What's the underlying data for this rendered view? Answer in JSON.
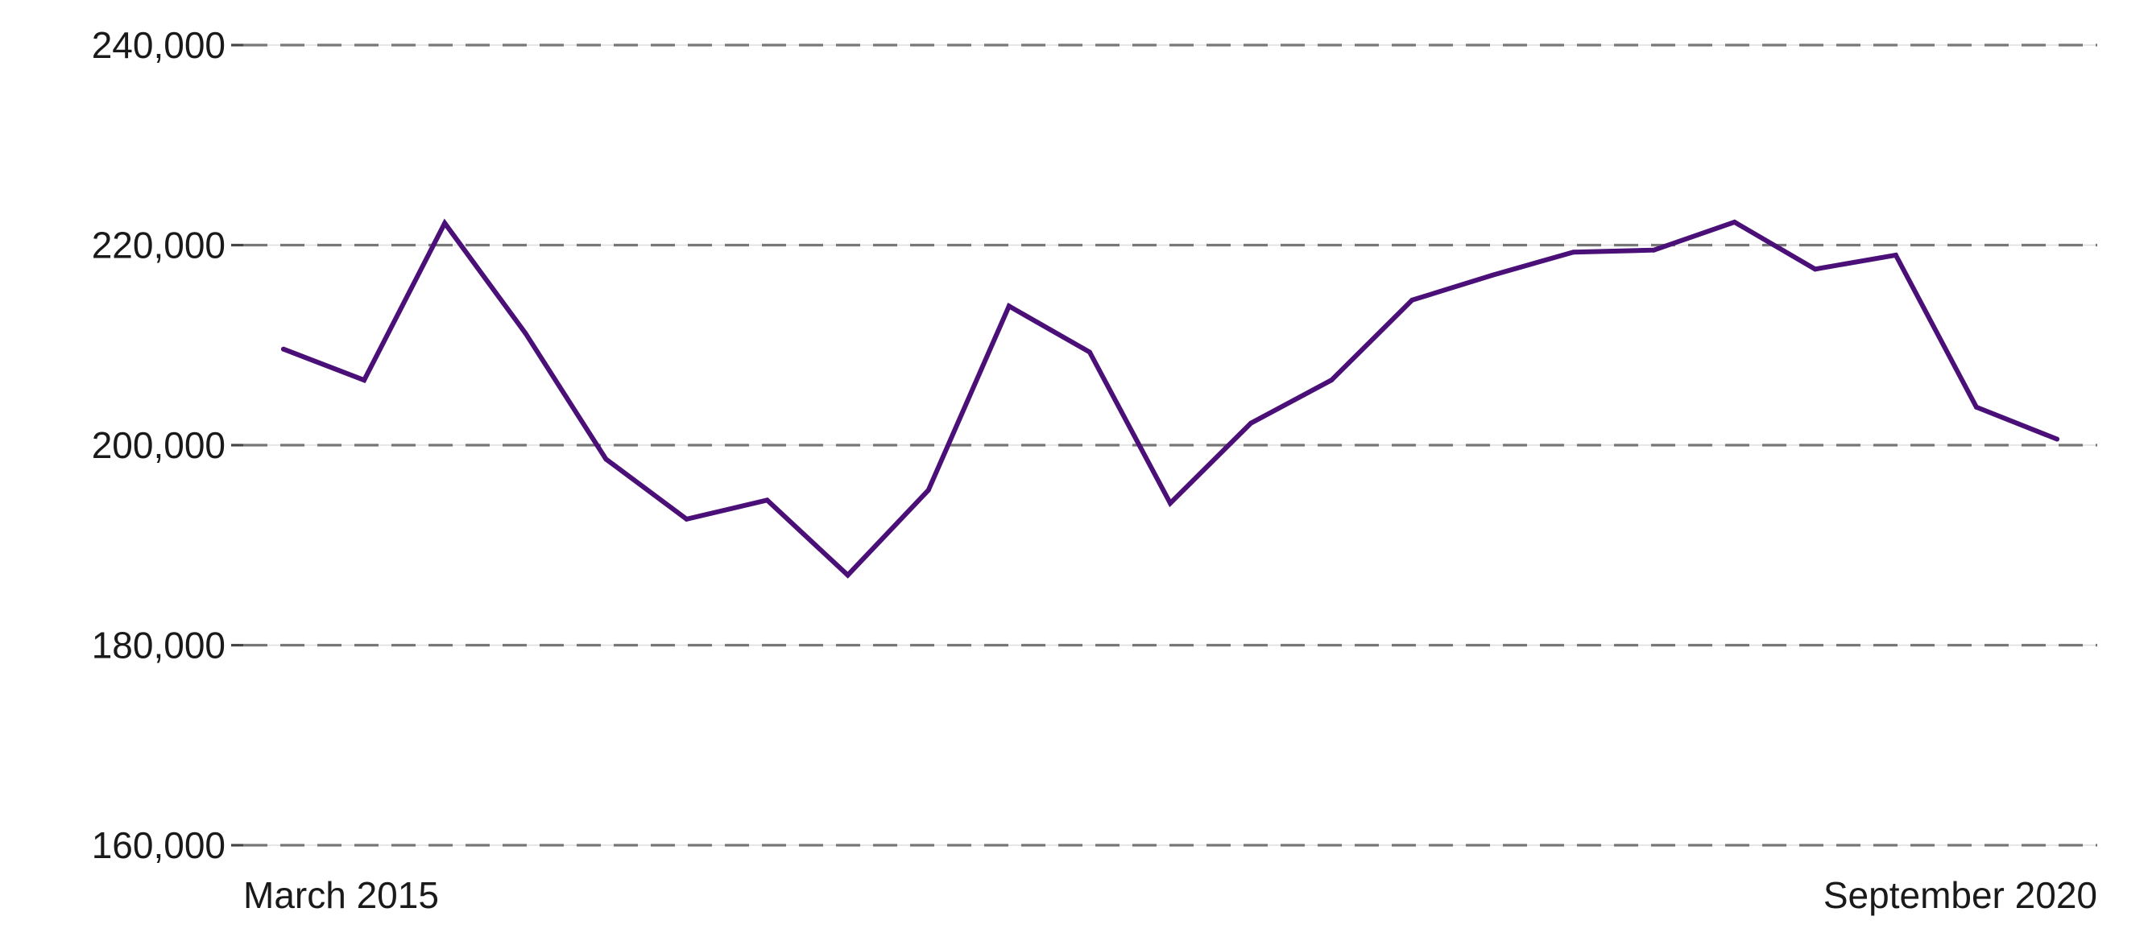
{
  "chart_data": {
    "type": "line",
    "title": "",
    "xlabel": "",
    "ylabel": "",
    "x_tick_labels": [
      "March 2015",
      "September 2020"
    ],
    "y_tick_labels": [
      "240,000",
      "220,000",
      "200,000",
      "180,000",
      "160,000"
    ],
    "y_ticks": [
      240000,
      220000,
      200000,
      180000,
      160000
    ],
    "ylim": [
      160000,
      240000
    ],
    "grid": true,
    "line_color": "#4b0f78",
    "x": [
      "Mar 2015",
      "Jun 2015",
      "Sep 2015",
      "Dec 2015",
      "Mar 2016",
      "Jun 2016",
      "Sep 2016",
      "Dec 2016",
      "Mar 2017",
      "Jun 2017",
      "Sep 2017",
      "Dec 2017",
      "Mar 2018",
      "Jun 2018",
      "Sep 2018",
      "Dec 2018",
      "Mar 2019",
      "Jun 2019",
      "Sep 2019",
      "Dec 2019",
      "Mar 2020",
      "Jun 2020",
      "Sep 2020"
    ],
    "series": [
      {
        "values": [
          209600,
          206500,
          222200,
          211200,
          198600,
          192600,
          194500,
          187000,
          195500,
          213900,
          209300,
          194200,
          202200,
          206500,
          214500,
          217000,
          219300,
          219500,
          222300,
          217600,
          219000,
          203800,
          200600
        ]
      }
    ]
  }
}
